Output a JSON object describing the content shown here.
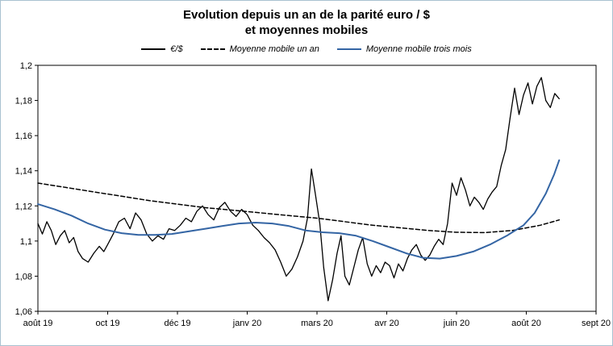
{
  "frame": {
    "background": "#ffffff",
    "border_color": "#a9c2d1"
  },
  "title": {
    "line1": "Evolution depuis un an de la parité euro / $",
    "line2": "et moyennes mobiles"
  },
  "chart_data": {
    "type": "line",
    "title": "Evolution depuis un an de la parité euro / $ et moyennes mobiles",
    "grid": false,
    "legend_position": "top",
    "x_axis": {
      "labels": [
        "août 19",
        "oct 19",
        "déc 19",
        "janv 20",
        "mars 20",
        "avr 20",
        "juin 20",
        "août 20",
        "sept 20"
      ]
    },
    "y_axis": {
      "min": 1.06,
      "max": 1.2,
      "ticks": [
        {
          "value": 1.06,
          "label": "1,06"
        },
        {
          "value": 1.08,
          "label": "1,08"
        },
        {
          "value": 1.1,
          "label": "1,1"
        },
        {
          "value": 1.12,
          "label": "1,12"
        },
        {
          "value": 1.14,
          "label": "1,14"
        },
        {
          "value": 1.16,
          "label": "1,16"
        },
        {
          "value": 1.18,
          "label": "1,18"
        },
        {
          "value": 1.2,
          "label": "1,2"
        }
      ]
    },
    "series": [
      {
        "name": "€/$",
        "color": "#000000",
        "style": "solid",
        "width": 1.3,
        "points": [
          [
            0.0,
            1.11
          ],
          [
            0.008,
            1.104
          ],
          [
            0.016,
            1.111
          ],
          [
            0.024,
            1.106
          ],
          [
            0.032,
            1.098
          ],
          [
            0.04,
            1.103
          ],
          [
            0.048,
            1.106
          ],
          [
            0.056,
            1.099
          ],
          [
            0.064,
            1.102
          ],
          [
            0.072,
            1.094
          ],
          [
            0.08,
            1.09
          ],
          [
            0.09,
            1.088
          ],
          [
            0.1,
            1.093
          ],
          [
            0.11,
            1.097
          ],
          [
            0.118,
            1.094
          ],
          [
            0.125,
            1.098
          ],
          [
            0.135,
            1.104
          ],
          [
            0.145,
            1.111
          ],
          [
            0.155,
            1.113
          ],
          [
            0.165,
            1.107
          ],
          [
            0.175,
            1.116
          ],
          [
            0.185,
            1.112
          ],
          [
            0.195,
            1.104
          ],
          [
            0.205,
            1.1
          ],
          [
            0.215,
            1.103
          ],
          [
            0.225,
            1.101
          ],
          [
            0.235,
            1.107
          ],
          [
            0.245,
            1.106
          ],
          [
            0.255,
            1.109
          ],
          [
            0.265,
            1.113
          ],
          [
            0.275,
            1.111
          ],
          [
            0.285,
            1.117
          ],
          [
            0.295,
            1.12
          ],
          [
            0.305,
            1.115
          ],
          [
            0.315,
            1.112
          ],
          [
            0.325,
            1.119
          ],
          [
            0.335,
            1.122
          ],
          [
            0.345,
            1.117
          ],
          [
            0.355,
            1.114
          ],
          [
            0.365,
            1.118
          ],
          [
            0.375,
            1.115
          ],
          [
            0.385,
            1.109
          ],
          [
            0.395,
            1.106
          ],
          [
            0.405,
            1.102
          ],
          [
            0.415,
            1.099
          ],
          [
            0.425,
            1.095
          ],
          [
            0.435,
            1.088
          ],
          [
            0.445,
            1.08
          ],
          [
            0.455,
            1.084
          ],
          [
            0.465,
            1.091
          ],
          [
            0.475,
            1.1
          ],
          [
            0.483,
            1.113
          ],
          [
            0.49,
            1.141
          ],
          [
            0.497,
            1.127
          ],
          [
            0.505,
            1.11
          ],
          [
            0.512,
            1.085
          ],
          [
            0.52,
            1.066
          ],
          [
            0.528,
            1.078
          ],
          [
            0.536,
            1.093
          ],
          [
            0.543,
            1.103
          ],
          [
            0.55,
            1.08
          ],
          [
            0.558,
            1.075
          ],
          [
            0.566,
            1.085
          ],
          [
            0.574,
            1.095
          ],
          [
            0.582,
            1.102
          ],
          [
            0.59,
            1.087
          ],
          [
            0.598,
            1.08
          ],
          [
            0.606,
            1.086
          ],
          [
            0.614,
            1.082
          ],
          [
            0.622,
            1.088
          ],
          [
            0.63,
            1.086
          ],
          [
            0.638,
            1.079
          ],
          [
            0.646,
            1.087
          ],
          [
            0.654,
            1.083
          ],
          [
            0.662,
            1.09
          ],
          [
            0.67,
            1.095
          ],
          [
            0.678,
            1.098
          ],
          [
            0.686,
            1.092
          ],
          [
            0.694,
            1.089
          ],
          [
            0.702,
            1.092
          ],
          [
            0.71,
            1.097
          ],
          [
            0.718,
            1.101
          ],
          [
            0.726,
            1.098
          ],
          [
            0.734,
            1.11
          ],
          [
            0.742,
            1.133
          ],
          [
            0.75,
            1.126
          ],
          [
            0.758,
            1.136
          ],
          [
            0.766,
            1.129
          ],
          [
            0.774,
            1.12
          ],
          [
            0.782,
            1.125
          ],
          [
            0.79,
            1.122
          ],
          [
            0.798,
            1.118
          ],
          [
            0.806,
            1.124
          ],
          [
            0.814,
            1.128
          ],
          [
            0.822,
            1.131
          ],
          [
            0.83,
            1.143
          ],
          [
            0.838,
            1.152
          ],
          [
            0.846,
            1.17
          ],
          [
            0.854,
            1.187
          ],
          [
            0.862,
            1.172
          ],
          [
            0.87,
            1.183
          ],
          [
            0.878,
            1.19
          ],
          [
            0.886,
            1.178
          ],
          [
            0.894,
            1.188
          ],
          [
            0.902,
            1.193
          ],
          [
            0.91,
            1.18
          ],
          [
            0.918,
            1.176
          ],
          [
            0.926,
            1.184
          ],
          [
            0.934,
            1.181
          ]
        ]
      },
      {
        "name": "Moyenne mobile un an",
        "color": "#000000",
        "style": "dashed",
        "width": 1.5,
        "points": [
          [
            0.0,
            1.133
          ],
          [
            0.05,
            1.1305
          ],
          [
            0.1,
            1.128
          ],
          [
            0.15,
            1.1255
          ],
          [
            0.2,
            1.123
          ],
          [
            0.25,
            1.121
          ],
          [
            0.3,
            1.119
          ],
          [
            0.35,
            1.1175
          ],
          [
            0.4,
            1.116
          ],
          [
            0.45,
            1.1145
          ],
          [
            0.5,
            1.113
          ],
          [
            0.55,
            1.111
          ],
          [
            0.6,
            1.109
          ],
          [
            0.65,
            1.1075
          ],
          [
            0.7,
            1.106
          ],
          [
            0.75,
            1.105
          ],
          [
            0.8,
            1.1048
          ],
          [
            0.85,
            1.106
          ],
          [
            0.9,
            1.109
          ],
          [
            0.934,
            1.112
          ]
        ]
      },
      {
        "name": "Moyenne mobile trois mois",
        "color": "#3465a4",
        "style": "solid",
        "width": 2,
        "points": [
          [
            0.0,
            1.121
          ],
          [
            0.03,
            1.118
          ],
          [
            0.06,
            1.1145
          ],
          [
            0.09,
            1.11
          ],
          [
            0.12,
            1.1065
          ],
          [
            0.15,
            1.1045
          ],
          [
            0.18,
            1.1035
          ],
          [
            0.21,
            1.1035
          ],
          [
            0.24,
            1.104
          ],
          [
            0.27,
            1.1055
          ],
          [
            0.3,
            1.107
          ],
          [
            0.33,
            1.1085
          ],
          [
            0.36,
            1.11
          ],
          [
            0.39,
            1.1105
          ],
          [
            0.42,
            1.11
          ],
          [
            0.45,
            1.1085
          ],
          [
            0.48,
            1.106
          ],
          [
            0.51,
            1.105
          ],
          [
            0.54,
            1.1045
          ],
          [
            0.57,
            1.103
          ],
          [
            0.6,
            1.1
          ],
          [
            0.63,
            1.0965
          ],
          [
            0.66,
            1.093
          ],
          [
            0.69,
            1.0905
          ],
          [
            0.72,
            1.09
          ],
          [
            0.75,
            1.0915
          ],
          [
            0.78,
            1.094
          ],
          [
            0.81,
            1.098
          ],
          [
            0.84,
            1.103
          ],
          [
            0.87,
            1.109
          ],
          [
            0.89,
            1.116
          ],
          [
            0.91,
            1.127
          ],
          [
            0.925,
            1.138
          ],
          [
            0.934,
            1.146
          ]
        ]
      }
    ]
  }
}
